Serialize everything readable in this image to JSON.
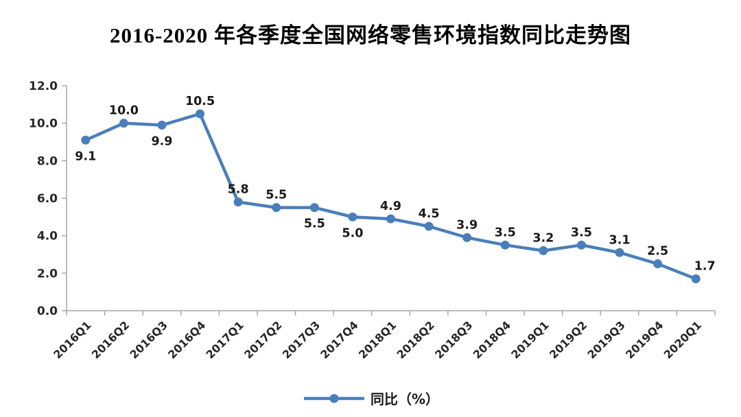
{
  "title": "2016-2020 年各季度全国网络零售环境指数同比走势图",
  "legend": {
    "label": "同比（%）"
  },
  "colors": {
    "series": "#4a7ebb",
    "axis": "#a6a6a6",
    "tick_text": "#262626",
    "data_label_text": "#1a1a1a"
  },
  "chart_data": {
    "type": "line",
    "title": "2016-2020 年各季度全国网络零售环境指数同比走势图",
    "categories": [
      "2016Q1",
      "2016Q2",
      "2016Q3",
      "2016Q4",
      "2017Q1",
      "2017Q2",
      "2017Q3",
      "2017Q4",
      "2018Q1",
      "2018Q2",
      "2018Q3",
      "2018Q4",
      "2019Q1",
      "2019Q2",
      "2019Q3",
      "2019Q4",
      "2020Q1"
    ],
    "series": [
      {
        "name": "同比（%）",
        "values": [
          9.1,
          10.0,
          9.9,
          10.5,
          5.8,
          5.5,
          5.5,
          5.0,
          4.9,
          4.5,
          3.9,
          3.5,
          3.2,
          3.5,
          3.1,
          2.5,
          1.7
        ]
      }
    ],
    "data_labels": [
      "9.1",
      "10.0",
      "9.9",
      "10.5",
      "5.8",
      "5.5",
      "5.5",
      "5.0",
      "4.9",
      "4.5",
      "3.9",
      "3.5",
      "3.2",
      "3.5",
      "3.1",
      "2.5",
      "1.7"
    ],
    "label_positions": [
      "below",
      "above",
      "below",
      "above",
      "above",
      "above",
      "below",
      "below",
      "above",
      "above",
      "above",
      "above",
      "above",
      "above",
      "above",
      "above",
      "above"
    ],
    "y_ticks": [
      "0.0",
      "2.0",
      "4.0",
      "6.0",
      "8.0",
      "10.0",
      "12.0"
    ],
    "ylim": [
      0,
      12
    ],
    "xlabel": "",
    "ylabel": "",
    "grid": false,
    "legend_position": "bottom"
  }
}
